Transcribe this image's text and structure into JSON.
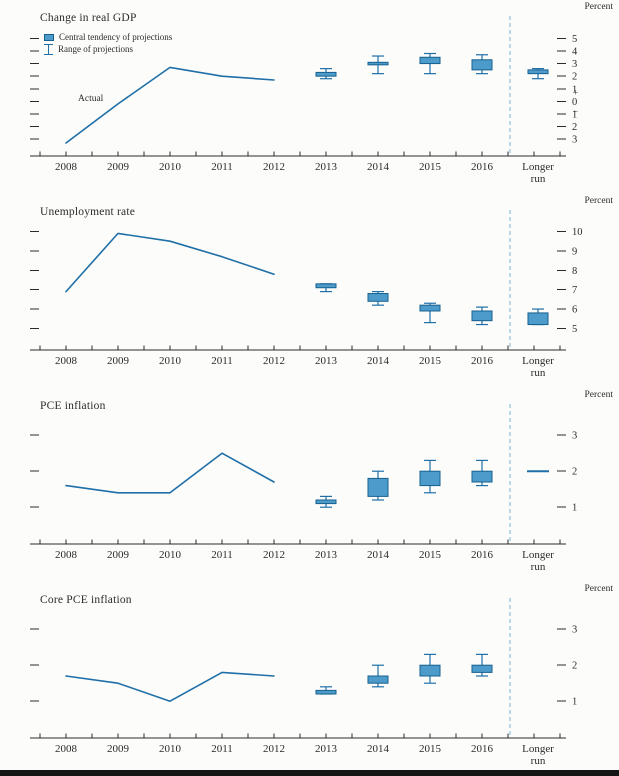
{
  "palette": {
    "ink": "#2b2b2b",
    "line": "#1f6fa8",
    "box_fill": "#4d9bca",
    "box_stroke": "#16608f",
    "divider": "#7ab4d8"
  },
  "chart_data": [
    {
      "type": "line-box",
      "title": "Change in real GDP",
      "unit_label": "Percent",
      "x_categories": [
        "2008",
        "2009",
        "2010",
        "2011",
        "2012",
        "2013",
        "2014",
        "2015",
        "2016",
        "Longer run"
      ],
      "ylim": [
        -3.7,
        6.3
      ],
      "y_ticks": [
        5,
        4,
        3,
        2,
        1,
        0,
        -1,
        -2,
        -3
      ],
      "y_tick_labels": [
        "5",
        "4",
        "3",
        "2",
        "1",
        "0",
        "1",
        "2",
        "3"
      ],
      "zero_plus_minus_marker": true,
      "grid": false,
      "legend": [
        {
          "symbol": "central-tendency-box",
          "label": "Central tendency of projections"
        },
        {
          "symbol": "range-i-beam",
          "label": "Range of projections"
        }
      ],
      "actual_series": {
        "label": "Actual",
        "x": [
          "2008",
          "2009",
          "2010",
          "2011",
          "2012"
        ],
        "values": [
          -3.3,
          -0.2,
          2.7,
          2.0,
          1.7
        ]
      },
      "projections": [
        {
          "period": "2013",
          "central_tendency": [
            2.0,
            2.3
          ],
          "range": [
            1.8,
            2.6
          ]
        },
        {
          "period": "2014",
          "central_tendency": [
            2.9,
            3.1
          ],
          "range": [
            2.2,
            3.6
          ]
        },
        {
          "period": "2015",
          "central_tendency": [
            3.0,
            3.5
          ],
          "range": [
            2.2,
            3.8
          ]
        },
        {
          "period": "2016",
          "central_tendency": [
            2.5,
            3.3
          ],
          "range": [
            2.2,
            3.7
          ]
        },
        {
          "period": "Longer run",
          "central_tendency": [
            2.2,
            2.5
          ],
          "range": [
            1.8,
            2.6
          ]
        }
      ]
    },
    {
      "type": "line-box",
      "title": "Unemployment rate",
      "unit_label": "Percent",
      "x_categories": [
        "2008",
        "2009",
        "2010",
        "2011",
        "2012",
        "2013",
        "2014",
        "2015",
        "2016",
        "Longer run"
      ],
      "ylim": [
        4.3,
        10.8
      ],
      "y_ticks": [
        10,
        9,
        8,
        7,
        6,
        5
      ],
      "y_tick_labels": [
        "10",
        "9",
        "8",
        "7",
        "6",
        "5"
      ],
      "zero_plus_minus_marker": false,
      "grid": false,
      "actual_series": {
        "label": "Actual",
        "x": [
          "2008",
          "2009",
          "2010",
          "2011",
          "2012"
        ],
        "values": [
          6.9,
          9.9,
          9.5,
          8.7,
          7.8
        ]
      },
      "projections": [
        {
          "period": "2013",
          "central_tendency": [
            7.1,
            7.3
          ],
          "range": [
            6.9,
            7.3
          ]
        },
        {
          "period": "2014",
          "central_tendency": [
            6.4,
            6.8
          ],
          "range": [
            6.2,
            6.9
          ]
        },
        {
          "period": "2015",
          "central_tendency": [
            5.9,
            6.2
          ],
          "range": [
            5.3,
            6.3
          ]
        },
        {
          "period": "2016",
          "central_tendency": [
            5.4,
            5.9
          ],
          "range": [
            5.2,
            6.1
          ]
        },
        {
          "period": "Longer run",
          "central_tendency": [
            5.2,
            5.8
          ],
          "range": [
            5.2,
            6.0
          ]
        }
      ]
    },
    {
      "type": "line-box",
      "title": "PCE inflation",
      "unit_label": "Percent",
      "x_categories": [
        "2008",
        "2009",
        "2010",
        "2011",
        "2012",
        "2013",
        "2014",
        "2015",
        "2016",
        "Longer run"
      ],
      "ylim": [
        0.2,
        3.7
      ],
      "y_ticks": [
        3,
        2,
        1
      ],
      "y_tick_labels": [
        "3",
        "2",
        "1"
      ],
      "zero_plus_minus_marker": false,
      "grid": false,
      "actual_series": {
        "label": "Actual",
        "x": [
          "2008",
          "2009",
          "2010",
          "2011",
          "2012"
        ],
        "values": [
          1.6,
          1.4,
          1.4,
          2.5,
          1.7
        ]
      },
      "projections": [
        {
          "period": "2013",
          "central_tendency": [
            1.1,
            1.2
          ],
          "range": [
            1.0,
            1.3
          ]
        },
        {
          "period": "2014",
          "central_tendency": [
            1.3,
            1.8
          ],
          "range": [
            1.2,
            2.0
          ]
        },
        {
          "period": "2015",
          "central_tendency": [
            1.6,
            2.0
          ],
          "range": [
            1.4,
            2.3
          ]
        },
        {
          "period": "2016",
          "central_tendency": [
            1.7,
            2.0
          ],
          "range": [
            1.6,
            2.3
          ]
        },
        {
          "period": "Longer run",
          "central_tendency": [
            2.0,
            2.0
          ],
          "range": [
            2.0,
            2.0
          ]
        }
      ]
    },
    {
      "type": "line-box",
      "title": "Core PCE inflation",
      "unit_label": "Percent",
      "x_categories": [
        "2008",
        "2009",
        "2010",
        "2011",
        "2012",
        "2013",
        "2014",
        "2015",
        "2016",
        "Longer run"
      ],
      "ylim": [
        0.2,
        3.7
      ],
      "y_ticks": [
        3,
        2,
        1
      ],
      "y_tick_labels": [
        "3",
        "2",
        "1"
      ],
      "zero_plus_minus_marker": false,
      "grid": false,
      "actual_series": {
        "label": "Actual",
        "x": [
          "2008",
          "2009",
          "2010",
          "2011",
          "2012"
        ],
        "values": [
          1.7,
          1.5,
          1.0,
          1.8,
          1.7
        ]
      },
      "projections": [
        {
          "period": "2013",
          "central_tendency": [
            1.2,
            1.3
          ],
          "range": [
            1.2,
            1.4
          ]
        },
        {
          "period": "2014",
          "central_tendency": [
            1.5,
            1.7
          ],
          "range": [
            1.4,
            2.0
          ]
        },
        {
          "period": "2015",
          "central_tendency": [
            1.7,
            2.0
          ],
          "range": [
            1.5,
            2.3
          ]
        },
        {
          "period": "2016",
          "central_tendency": [
            1.8,
            2.0
          ],
          "range": [
            1.7,
            2.3
          ]
        }
      ]
    }
  ]
}
